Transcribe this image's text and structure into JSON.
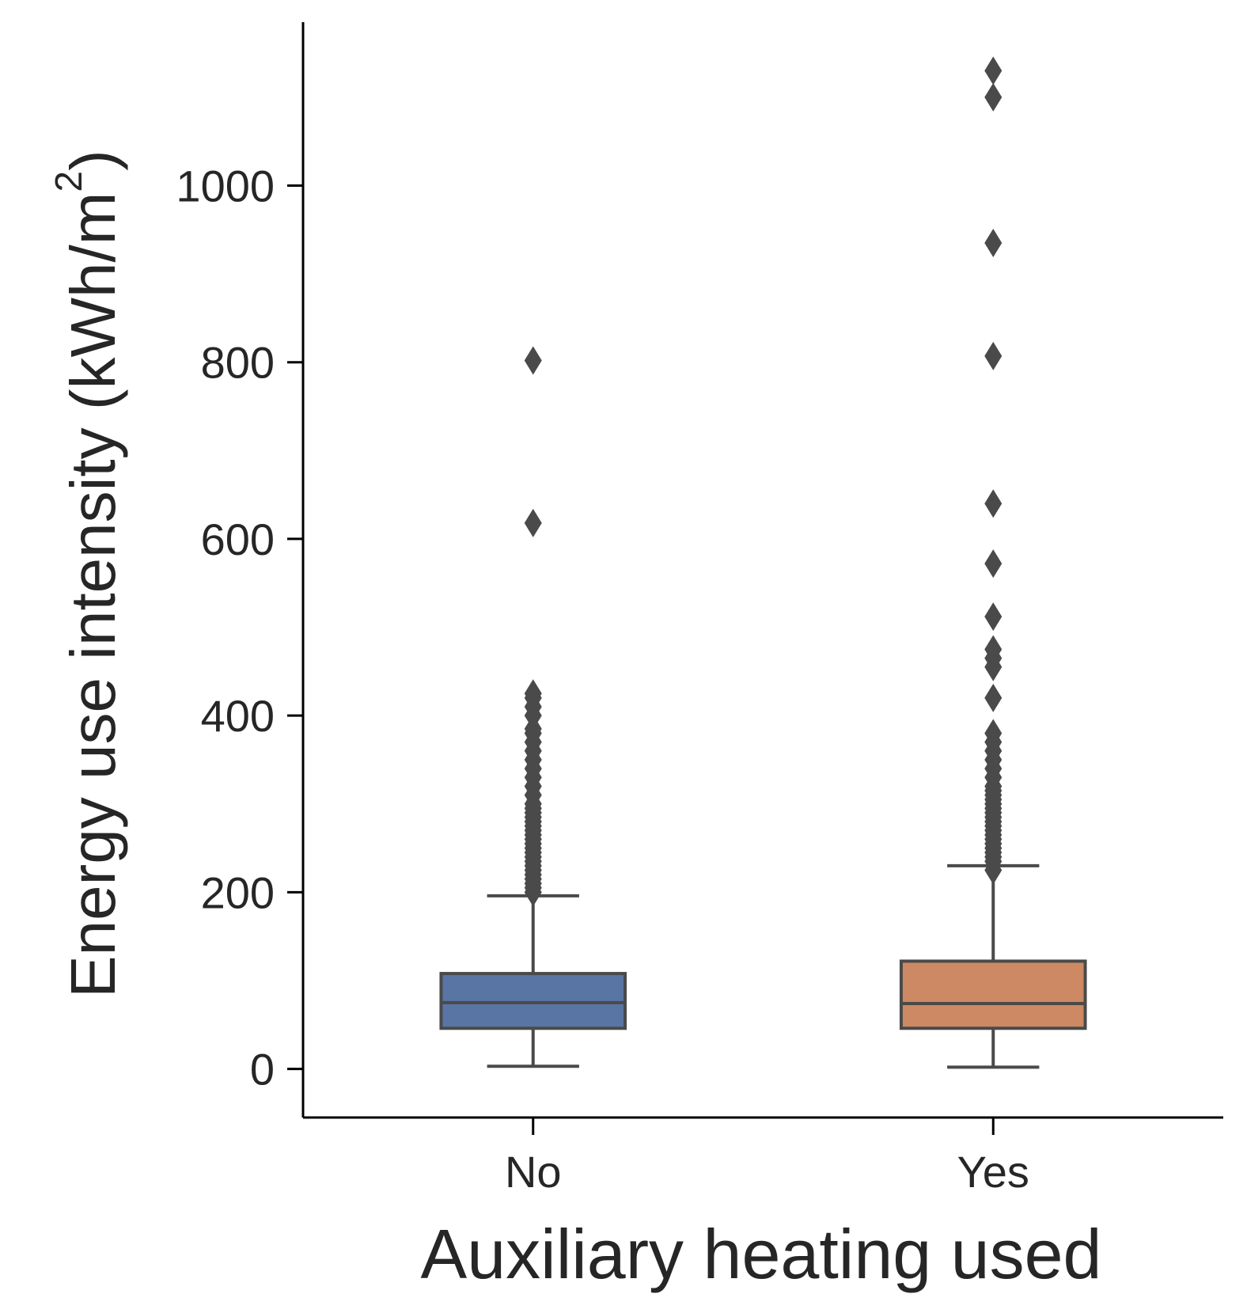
{
  "chart_data": {
    "type": "box",
    "xlabel": "Auxiliary heating used",
    "ylabel": "Energy use intensity (kWh/m",
    "ylabel_superscript": "2",
    "ylabel_close": ")",
    "ylim": [
      -55,
      1185
    ],
    "yticks": [
      0,
      200,
      400,
      600,
      800,
      1000
    ],
    "ytick_labels": [
      "0",
      "200",
      "400",
      "600",
      "800",
      "1000"
    ],
    "categories": [
      "No",
      "Yes"
    ],
    "grid": false,
    "series": [
      {
        "name": "No",
        "color": "#5875a4",
        "whisker_low": 3,
        "q1": 46,
        "median": 75,
        "q3": 108,
        "whisker_high": 196,
        "outliers": [
          200,
          205,
          210,
          215,
          220,
          225,
          230,
          235,
          240,
          245,
          250,
          255,
          260,
          265,
          270,
          275,
          280,
          285,
          290,
          295,
          300,
          310,
          320,
          330,
          340,
          350,
          360,
          370,
          380,
          385,
          400,
          410,
          420,
          425,
          618,
          802
        ]
      },
      {
        "name": "Yes",
        "color": "#cc8963",
        "whisker_low": 2,
        "q1": 46,
        "median": 74,
        "q3": 122,
        "whisker_high": 230,
        "outliers": [
          225,
          235,
          240,
          245,
          250,
          255,
          260,
          265,
          270,
          275,
          280,
          285,
          290,
          295,
          300,
          305,
          310,
          315,
          320,
          330,
          340,
          350,
          360,
          370,
          380,
          420,
          455,
          465,
          475,
          512,
          572,
          640,
          807,
          935,
          1100,
          1130
        ]
      }
    ]
  }
}
